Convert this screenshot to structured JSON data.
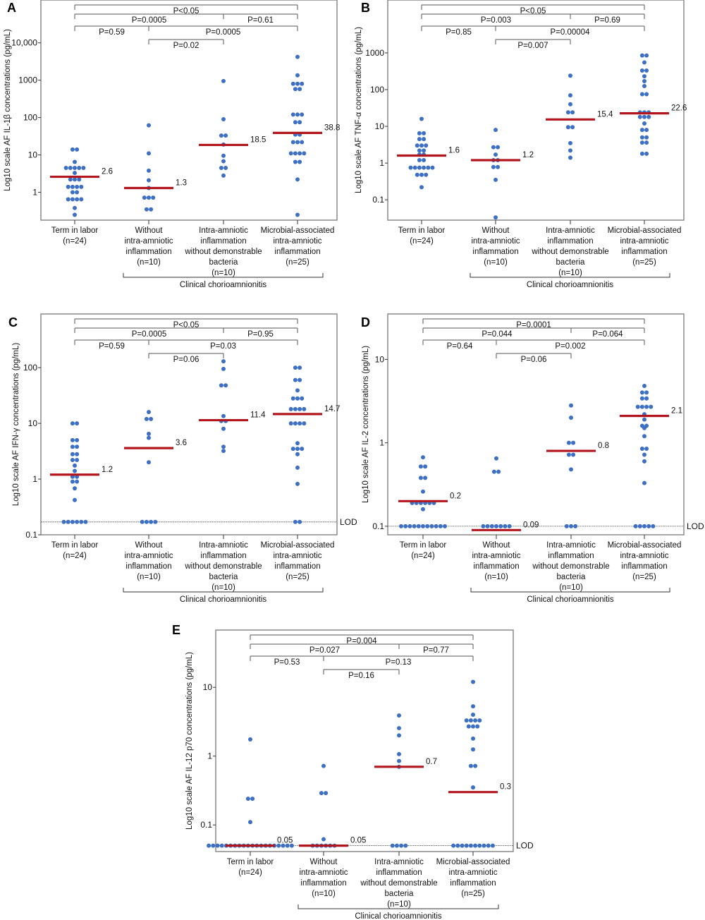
{
  "colors": {
    "dot": "#3d6fc2",
    "median": "#b3151c",
    "frame": "#8a8a8a",
    "bracket": "#555555"
  },
  "group_labels": [
    [
      "Term in labor",
      "(n=24)"
    ],
    [
      "Without",
      "intra-amniotic",
      "inflammation",
      "(n=10)"
    ],
    [
      "Intra-amniotic",
      "inflammation",
      "without demonstrable",
      "bacteria",
      "(n=10)"
    ],
    [
      "Microbial-associated",
      "intra-amniotic",
      "inflammation",
      "(n=25)"
    ]
  ],
  "group_bracket_label": "Clinical chorioamnionitis",
  "chart_data": [
    {
      "panel": "A",
      "type": "scatter",
      "scale": "log10",
      "ylabel": "Log10 scale AF IL-1β concentrations (pg/mL)",
      "ylim": [
        0.18,
        140000
      ],
      "ticks": [
        1,
        10,
        100,
        1000,
        10000
      ],
      "tick_labels": [
        "1",
        "10",
        "100",
        "1000",
        "10,000"
      ],
      "lod": null,
      "lod_label": "",
      "medians": [
        2.6,
        1.3,
        18.5,
        38.8
      ],
      "median_labels": [
        "2.6",
        "1.3",
        "18.5",
        "38.8"
      ],
      "p_values": {
        "g1_g4_overall": "P<0.05",
        "g1_g3": "P=0.0005",
        "g3_g4": "P=0.61",
        "g1_g2": "P=0.59",
        "g2_g4": "P=0.0005",
        "g2_g3": "P=0.02"
      },
      "groups": [
        [
          14,
          14,
          6.5,
          4.5,
          4.5,
          4.5,
          4.5,
          4.5,
          3.3,
          2.2,
          2.2,
          2.2,
          1.4,
          1.4,
          1.4,
          1.4,
          1.0,
          1.0,
          0.65,
          0.65,
          0.65,
          0.65,
          0.38,
          0.25
        ],
        [
          62,
          11,
          3.8,
          2.1,
          1.3,
          0.72,
          0.72,
          0.72,
          0.35,
          0.35
        ],
        [
          950,
          90,
          33,
          33,
          19,
          9.5,
          6.8,
          4.5,
          4.5,
          2.8
        ],
        [
          4200,
          1350,
          800,
          800,
          800,
          580,
          580,
          120,
          120,
          120,
          75,
          75,
          35,
          35,
          22,
          22,
          22,
          11,
          11,
          11,
          11,
          6.5,
          6.5,
          2.2,
          0.25
        ]
      ]
    },
    {
      "panel": "B",
      "type": "scatter",
      "scale": "log10",
      "ylabel": "Log10 scale AF TNF-α concentrations (pg/mL)",
      "ylim": [
        0.028,
        27500
      ],
      "ticks": [
        0.1,
        1,
        10,
        100,
        1000
      ],
      "tick_labels": [
        "0.1",
        "1",
        "10",
        "100",
        "1000"
      ],
      "lod": null,
      "lod_label": "",
      "medians": [
        1.6,
        1.2,
        15.4,
        22.6
      ],
      "median_labels": [
        "1.6",
        "1.2",
        "15.4",
        "22.6"
      ],
      "p_values": {
        "g1_g4_overall": "P<0.05",
        "g1_g3": "P=0.003",
        "g3_g4": "P=0.69",
        "g1_g2": "P=0.85",
        "g2_g4": "P=0.00004",
        "g2_g3": "P=0.007"
      },
      "groups": [
        [
          16,
          6.5,
          6.5,
          4.5,
          4.5,
          3,
          3,
          3,
          2.2,
          2.2,
          1.7,
          1.7,
          1.2,
          1.2,
          0.75,
          0.75,
          0.75,
          0.75,
          0.75,
          0.75,
          0.48,
          0.48,
          0.48,
          0.22
        ],
        [
          8,
          2.7,
          2.7,
          1.7,
          1.2,
          1.2,
          0.78,
          0.78,
          0.35,
          0.033
        ],
        [
          240,
          70,
          40,
          24,
          24,
          9.5,
          9.5,
          3.5,
          2.2,
          1.4
        ],
        [
          850,
          850,
          550,
          330,
          330,
          230,
          170,
          125,
          75,
          75,
          24,
          24,
          24,
          18,
          18,
          18,
          12,
          8,
          8,
          5,
          5,
          3.6,
          3.6,
          1.8,
          1.8
        ]
      ]
    },
    {
      "panel": "C",
      "type": "scatter",
      "scale": "log10",
      "ylabel": "Log10 scale AF IFN-γ concentrations (pg/mL)",
      "ylim": [
        0.1,
        920
      ],
      "ticks": [
        0.1,
        1,
        10,
        100
      ],
      "tick_labels": [
        "0.1",
        "1",
        "10",
        "100"
      ],
      "lod": 0.17,
      "lod_label": "LOD",
      "medians": [
        1.2,
        3.6,
        11.4,
        14.7
      ],
      "median_labels": [
        "1.2",
        "3.6",
        "11.4",
        "14.7"
      ],
      "p_values": {
        "g1_g4_overall": "P<0.05",
        "g1_g3": "P=0.0005",
        "g3_g4": "P=0.95",
        "g1_g2": "P=0.59",
        "g2_g4": "P=0.03",
        "g2_g3": "P=0.06"
      },
      "groups": [
        [
          10,
          10,
          5,
          5,
          3.8,
          3.8,
          2.8,
          2.8,
          2.2,
          2.2,
          1.75,
          1.4,
          1.1,
          1.1,
          0.9,
          0.9,
          0.68,
          0.42,
          0.17,
          0.17,
          0.17,
          0.17,
          0.17,
          0.17
        ],
        [
          16,
          12,
          12,
          6.5,
          5.5,
          2,
          0.17,
          0.17,
          0.17,
          0.17
        ],
        [
          130,
          95,
          48,
          48,
          13.5,
          11,
          11,
          8,
          3.8,
          3.2
        ],
        [
          100,
          100,
          60,
          60,
          39,
          28,
          28,
          28,
          18,
          18,
          18,
          18,
          10,
          10,
          10,
          10,
          4.4,
          3.5,
          3.5,
          3.5,
          2.8,
          1.6,
          0.82,
          0.17,
          0.17
        ]
      ]
    },
    {
      "panel": "D",
      "type": "scatter",
      "scale": "log10",
      "ylabel": "Log10 scale AF IL-2 concentrations (pg/mL)",
      "ylim": [
        0.079,
        35
      ],
      "ticks": [
        0.1,
        1,
        10
      ],
      "tick_labels": [
        "0.1",
        "1",
        "10"
      ],
      "lod": 0.1,
      "lod_label": "LOD",
      "medians": [
        0.2,
        0.09,
        0.8,
        2.1
      ],
      "median_labels": [
        "0.2",
        "0.09",
        "0.8",
        "2.1"
      ],
      "p_values": {
        "g1_g4_overall": "P=0.0001",
        "g1_g3": "P=0.044",
        "g3_g4": "P=0.064",
        "g1_g2": "P=0.64",
        "g2_g4": "P=0.002",
        "g2_g3": "P=0.06"
      },
      "groups": [
        [
          0.67,
          0.52,
          0.52,
          0.38,
          0.38,
          0.26,
          0.19,
          0.19,
          0.19,
          0.19,
          0.19,
          0.19,
          0.16,
          0.1,
          0.1,
          0.1,
          0.1,
          0.1,
          0.1,
          0.1,
          0.1,
          0.1,
          0.1,
          0.1
        ],
        [
          0.65,
          0.45,
          0.45,
          0.1,
          0.1,
          0.1,
          0.1,
          0.1,
          0.1,
          0.1
        ],
        [
          2.8,
          2,
          1,
          1,
          0.72,
          0.72,
          0.48,
          0.1,
          0.1,
          0.1
        ],
        [
          4.8,
          4,
          4,
          3.4,
          3.4,
          2.7,
          2.7,
          2.7,
          2.7,
          2.2,
          1.9,
          1.6,
          1.6,
          1.5,
          1.2,
          0.85,
          0.85,
          0.72,
          0.6,
          0.33,
          0.1,
          0.1,
          0.1,
          0.1,
          0.1
        ]
      ]
    },
    {
      "panel": "E",
      "type": "scatter",
      "scale": "log10",
      "ylabel": "Log10 scale AF IL-12 p70 concentrations (pg/mL)",
      "ylim": [
        0.041,
        68
      ],
      "ticks": [
        0.1,
        1,
        10
      ],
      "tick_labels": [
        "0.1",
        "1",
        "10"
      ],
      "lod": 0.05,
      "lod_label": "LOD",
      "medians": [
        0.05,
        0.05,
        0.7,
        0.3
      ],
      "median_labels": [
        "0.05",
        "0.05",
        "0.7",
        "0.3"
      ],
      "p_values": {
        "g1_g4_overall": "P=0.004",
        "g1_g3": "P=0.027",
        "g3_g4": "P=0.77",
        "g1_g2": "P=0.53",
        "g2_g4": "P=0.13",
        "g2_g3": "P=0.16"
      },
      "groups": [
        [
          1.75,
          0.24,
          0.24,
          0.11,
          0.05,
          0.05,
          0.05,
          0.05,
          0.05,
          0.05,
          0.05,
          0.05,
          0.05,
          0.05,
          0.05,
          0.05,
          0.05,
          0.05,
          0.05,
          0.05,
          0.05,
          0.05,
          0.05,
          0.05
        ],
        [
          0.72,
          0.29,
          0.29,
          0.062,
          0.05,
          0.05,
          0.05,
          0.05,
          0.05,
          0.05
        ],
        [
          3.9,
          2.55,
          2,
          1.07,
          0.85,
          0.7,
          0.05,
          0.05,
          0.05,
          0.05
        ],
        [
          12,
          5.3,
          4,
          3.3,
          3.3,
          3.3,
          3.3,
          2.7,
          2.7,
          2.7,
          1.8,
          1.25,
          0.72,
          0.72,
          0.35,
          0.05,
          0.05,
          0.05,
          0.05,
          0.05,
          0.05,
          0.05,
          0.05,
          0.05,
          0.05
        ]
      ]
    }
  ]
}
